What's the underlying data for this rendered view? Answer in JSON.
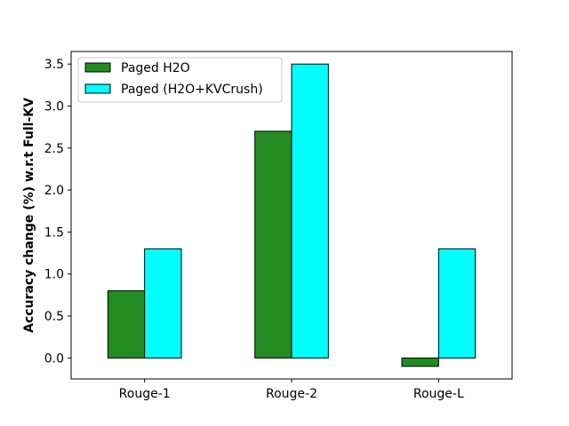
{
  "chart_data": {
    "type": "bar",
    "title": "",
    "xlabel": "",
    "ylabel": "Accuracy change (%) w.r.t Full-KV",
    "categories": [
      "Rouge-1",
      "Rouge-2",
      "Rouge-L"
    ],
    "series": [
      {
        "name": "Paged H2O",
        "values": [
          0.8,
          2.7,
          -0.1
        ],
        "color": "#228B22"
      },
      {
        "name": "Paged (H2O+KVCrush)",
        "values": [
          1.3,
          3.5,
          1.3
        ],
        "color": "#00FFFF"
      }
    ],
    "ylim": [
      -0.25,
      3.65
    ],
    "yticks": [
      "0.0",
      "0.5",
      "1.0",
      "1.5",
      "2.0",
      "2.5",
      "3.0",
      "3.5"
    ],
    "grid": false,
    "legend_position": "top-left"
  }
}
